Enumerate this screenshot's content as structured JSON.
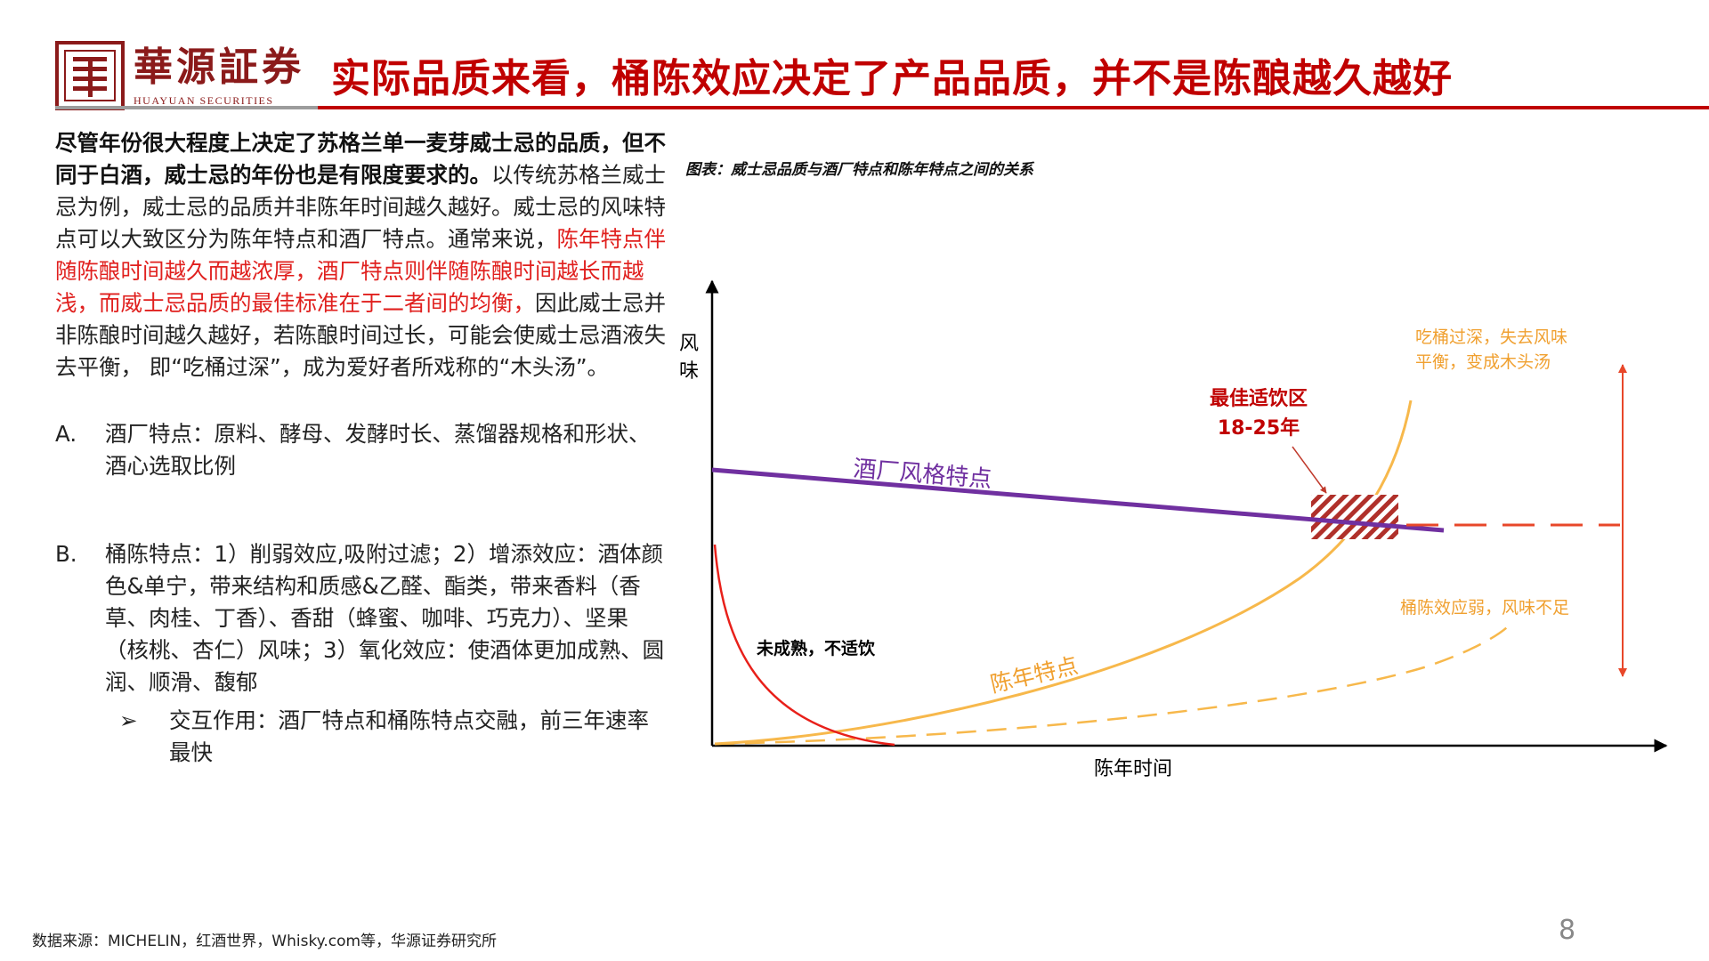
{
  "header": {
    "brand_cn": "華源証券",
    "brand_en": "HUAYUAN SECURITIES",
    "title": "实际品质来看，桶陈效应决定了产品品质，并不是陈酿越久越好"
  },
  "body": {
    "intro_bold": "尽管年份很大程度上决定了苏格兰单一麦芽威士忌的品质，但不同于白酒，威士忌的年份也是有限度要求的。",
    "intro_text1": "以传统苏格兰威士忌为例，威士忌的品质并非陈年时间越久越好。威士忌的风味特点可以大致区分为陈年特点和酒厂特点。通常来说，",
    "intro_red": "陈年特点伴随陈酿时间越久而越浓厚，酒厂特点则伴随陈酿时间越长而越浅，而威士忌品质的最佳标准在于二者间的均衡，",
    "intro_text2": "因此威士忌并非陈酿时间越久越好，若陈酿时间过长，可能会使威士忌酒液失去平衡， 即“吃桶过深”，成为爱好者所戏称的“木头汤”。",
    "item_a_marker": "A.",
    "item_a": "酒厂特点：原料、酵母、发酵时长、蒸馏器规格和形状、酒心选取比例",
    "item_b_marker": "B.",
    "item_b": "桶陈特点：1）削弱效应,吸附过滤；2）增添效应：酒体颜色&单宁，带来结构和质感&乙醛、酯类，带来香料（香草、肉桂、丁香）、香甜（蜂蜜、咖啡、巧克力）、坚果（核桃、杏仁）风味；3）氧化效应：使酒体更加成熟、圆润、顺滑、馥郁",
    "sub_marker": "➢",
    "sub_item": "交互作用：酒厂特点和桶陈特点交融，前三年速率最快"
  },
  "chart": {
    "title": "图表：威士忌品质与酒厂特点和陈年特点之间的关系",
    "y_label": "风味",
    "x_label": "陈年时间",
    "labels": {
      "distillery": "酒厂风格特点",
      "aging": "陈年特点",
      "immature": "未成熟，不适饮",
      "best_zone_line1": "最佳适饮区",
      "best_zone_line2": "18-25年",
      "over_oaked_line1": "吃桶过深，失去风味",
      "over_oaked_line2": "平衡，变成木头汤",
      "weak_cask": "桶陈效应弱，风味不足"
    },
    "colors": {
      "distillery": "#7030a0",
      "aging": "#f7b84b",
      "immature": "#e8201a",
      "best_zone": "#b0302a",
      "red_dash": "#e8472a",
      "orange_text": "#f0a030",
      "axis": "#000000"
    }
  },
  "footer": {
    "source": "数据来源：MICHELIN，红酒世界，Whisky.com等，华源证券研究所",
    "page": "8"
  }
}
